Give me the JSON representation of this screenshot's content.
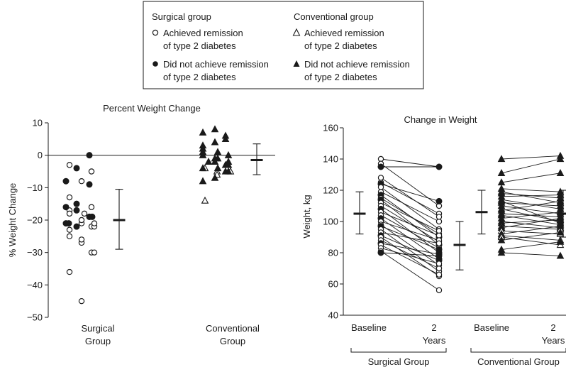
{
  "legend": {
    "surgical_header": "Surgical group",
    "conventional_header": "Conventional group",
    "surgical_remit": [
      "Achieved remission",
      "of type 2 diabetes"
    ],
    "surgical_nonremit": [
      "Did not achieve remission",
      "of type 2 diabetes"
    ],
    "conventional_remit": [
      "Achieved remission",
      "of type 2 diabetes"
    ],
    "conventional_nonremit": [
      "Did not achieve remission",
      "of type 2 diabetes"
    ]
  },
  "chart_data": [
    {
      "type": "scatter",
      "title": "Percent Weight Change",
      "ylabel": "% Weight Change",
      "ylim": [
        -50,
        10
      ],
      "yticks": [
        10,
        0,
        -10,
        -20,
        -30,
        -40,
        -50
      ],
      "categories": [
        "Surgical Group",
        "Conventional Group"
      ],
      "category_labels": [
        [
          "Surgical",
          "Group"
        ],
        [
          "Conventional",
          "Group"
        ]
      ],
      "zero_line": true,
      "series": [
        {
          "group": "surgical",
          "marker": "open-circle",
          "values": [
            -17,
            -21,
            -22,
            -3,
            -8,
            -16,
            -18,
            -20,
            -22,
            -25,
            -27,
            -30,
            -36,
            -45,
            -5,
            -13,
            -18,
            -21,
            -23,
            -26,
            -30
          ]
        },
        {
          "group": "surgical",
          "marker": "filled-circle",
          "values": [
            -21,
            -22,
            0,
            -8,
            -15,
            -19,
            -21,
            -4,
            -9,
            -16,
            -17,
            -19
          ]
        },
        {
          "group": "conventional",
          "marker": "open-triangle",
          "values": [
            -4,
            -5,
            -3,
            -14,
            -6,
            -5
          ]
        },
        {
          "group": "conventional",
          "marker": "filled-triangle",
          "values": [
            0,
            -2,
            -3,
            1,
            -1,
            -5,
            -8,
            8,
            6,
            3,
            1,
            -2,
            -4,
            -7,
            5,
            2,
            -1,
            -3,
            7,
            4,
            0,
            -2,
            -4,
            -5
          ]
        }
      ],
      "summary": [
        {
          "group": "surgical",
          "mean": -20,
          "lower": -29,
          "upper": -10.5
        },
        {
          "group": "conventional",
          "mean": -1.5,
          "lower": -6,
          "upper": 3.5
        }
      ]
    },
    {
      "type": "line",
      "title": "Change in Weight",
      "ylabel": "Weight, kg",
      "ylim": [
        40,
        160
      ],
      "yticks": [
        160,
        140,
        120,
        100,
        80,
        60,
        40
      ],
      "x": [
        "Baseline",
        "2 Years"
      ],
      "x_tick_labels": [
        [
          "Baseline"
        ],
        [
          "2",
          "Years"
        ]
      ],
      "group_labels": [
        "Surgical Group",
        "Conventional Group"
      ],
      "groups": [
        {
          "name": "Surgical Group",
          "summary": [
            {
              "timepoint": "Baseline",
              "mean": 105,
              "lower": 92,
              "upper": 119
            },
            {
              "timepoint": "2 Years",
              "mean": 85,
              "lower": 69,
              "upper": 100
            }
          ],
          "pairs": [
            [
              140,
              135,
              "open"
            ],
            [
              137,
              110,
              "open"
            ],
            [
              135,
              135,
              "filled"
            ],
            [
              125,
              105,
              "open"
            ],
            [
              124,
              113,
              "filled"
            ],
            [
              122,
              95,
              "open"
            ],
            [
              119,
              100,
              "open"
            ],
            [
              117,
              90,
              "filled"
            ],
            [
              115,
              92,
              "open"
            ],
            [
              114,
              85,
              "filled"
            ],
            [
              112,
              94,
              "open"
            ],
            [
              110,
              87,
              "open"
            ],
            [
              108,
              80,
              "filled"
            ],
            [
              106,
              91,
              "open"
            ],
            [
              104,
              83,
              "open"
            ],
            [
              102,
              76,
              "filled"
            ],
            [
              100,
              88,
              "open"
            ],
            [
              98,
              72,
              "open"
            ],
            [
              97,
              82,
              "filled"
            ],
            [
              95,
              68,
              "open"
            ],
            [
              93,
              86,
              "open"
            ],
            [
              91,
              75,
              "filled"
            ],
            [
              90,
              65,
              "open"
            ],
            [
              88,
              70,
              "open"
            ],
            [
              86,
              79,
              "filled"
            ],
            [
              85,
              66,
              "open"
            ],
            [
              83,
              73,
              "open"
            ],
            [
              81,
              56,
              "open"
            ],
            [
              80,
              78,
              "filled"
            ],
            [
              128,
              103,
              "open"
            ]
          ]
        },
        {
          "name": "Conventional Group",
          "summary": [
            {
              "timepoint": "Baseline",
              "mean": 106,
              "lower": 92,
              "upper": 120
            },
            {
              "timepoint": "2 Years",
              "mean": 105,
              "lower": 90,
              "upper": 120
            }
          ],
          "pairs": [
            [
              140,
              142,
              "filled"
            ],
            [
              131,
              140,
              "filled"
            ],
            [
              125,
              131,
              "filled"
            ],
            [
              121,
              119,
              "filled"
            ],
            [
              118,
              115,
              "filled"
            ],
            [
              116,
              117,
              "filled"
            ],
            [
              114,
              108,
              "filled"
            ],
            [
              112,
              110,
              "filled"
            ],
            [
              110,
              105,
              "filled"
            ],
            [
              108,
              100,
              "filled"
            ],
            [
              107,
              113,
              "filled"
            ],
            [
              105,
              103,
              "filled"
            ],
            [
              104,
              98,
              "filled"
            ],
            [
              102,
              106,
              "filled"
            ],
            [
              100,
              96,
              "filled"
            ],
            [
              99,
              101,
              "filled"
            ],
            [
              97,
              95,
              "open"
            ],
            [
              96,
              102,
              "filled"
            ],
            [
              94,
              92,
              "open"
            ],
            [
              92,
              97,
              "filled"
            ],
            [
              91,
              88,
              "open"
            ],
            [
              90,
              85,
              "open"
            ],
            [
              88,
              93,
              "filled"
            ],
            [
              82,
              87,
              "filled"
            ],
            [
              80,
              78,
              "filled"
            ],
            [
              119,
              112,
              "filled"
            ],
            [
              113,
              99,
              "filled"
            ]
          ]
        }
      ]
    }
  ]
}
